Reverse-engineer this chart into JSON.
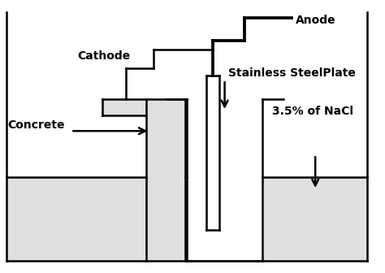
{
  "bg_color": "#ffffff",
  "fill_color": "#e0e0e0",
  "line_color": "#000000",
  "line_width": 1.8,
  "labels": {
    "anode": "Anode",
    "cathode": "Cathode",
    "ss_plate": "Stainless SteelPlate",
    "concrete": "Concrete",
    "nacl": "3.5% of NaCl"
  }
}
